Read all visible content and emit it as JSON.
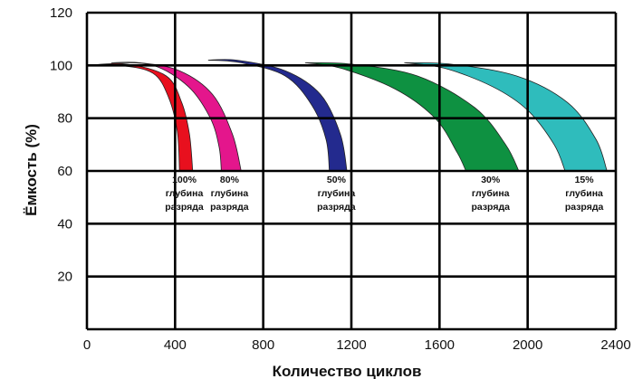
{
  "chart_data": {
    "type": "area",
    "xlabel": "Количество циклов",
    "ylabel": "Ёмкость (%)",
    "xlim": [
      0,
      2400
    ],
    "ylim": [
      0,
      120
    ],
    "x_ticks": [
      "0",
      "400",
      "800",
      "1200",
      "1600",
      "2000",
      "2400"
    ],
    "y_ticks": [
      "20",
      "40",
      "60",
      "80",
      "100",
      "120"
    ],
    "grid": true,
    "series": [
      {
        "label_lines": [
          "100%",
          "глубина",
          "разряда"
        ],
        "color": "#e8101e",
        "start": 0,
        "lower": [
          [
            0,
            100
          ],
          [
            150,
            100
          ],
          [
            300,
            97
          ],
          [
            370,
            88
          ],
          [
            410,
            75
          ],
          [
            420,
            60
          ]
        ],
        "upper": [
          [
            0,
            100
          ],
          [
            180,
            100.5
          ],
          [
            360,
            96
          ],
          [
            430,
            86
          ],
          [
            465,
            74
          ],
          [
            480,
            60
          ]
        ]
      },
      {
        "label_lines": [
          "80%",
          "глубина",
          "разряда"
        ],
        "color": "#e4168c",
        "start": 110,
        "lower": [
          [
            110,
            101
          ],
          [
            300,
            100
          ],
          [
            460,
            92
          ],
          [
            560,
            80
          ],
          [
            600,
            69
          ],
          [
            610,
            60
          ]
        ],
        "upper": [
          [
            110,
            101
          ],
          [
            240,
            101
          ],
          [
            420,
            98
          ],
          [
            570,
            89
          ],
          [
            660,
            74
          ],
          [
            700,
            60
          ]
        ]
      },
      {
        "label_lines": [
          "50%",
          "глубина",
          "разряда"
        ],
        "color": "#232a8e",
        "start": 550,
        "lower": [
          [
            550,
            102
          ],
          [
            700,
            101
          ],
          [
            900,
            96
          ],
          [
            1020,
            85
          ],
          [
            1085,
            72
          ],
          [
            1100,
            60
          ]
        ],
        "upper": [
          [
            550,
            102
          ],
          [
            680,
            102
          ],
          [
            900,
            98
          ],
          [
            1060,
            89
          ],
          [
            1150,
            74
          ],
          [
            1180,
            60
          ]
        ]
      },
      {
        "label_lines": [
          "30%",
          "глубина",
          "разряда"
        ],
        "color": "#0e9141",
        "start": 990,
        "lower": [
          [
            990,
            101
          ],
          [
            1150,
            99
          ],
          [
            1400,
            91
          ],
          [
            1580,
            80
          ],
          [
            1680,
            67
          ],
          [
            1720,
            60
          ]
        ],
        "upper": [
          [
            990,
            101
          ],
          [
            1200,
            100.5
          ],
          [
            1500,
            96
          ],
          [
            1760,
            84
          ],
          [
            1900,
            70
          ],
          [
            1960,
            60
          ]
        ]
      },
      {
        "label_lines": [
          "15%",
          "глубина",
          "разряда"
        ],
        "color": "#2fbcbc",
        "start": 1440,
        "lower": [
          [
            1440,
            101
          ],
          [
            1620,
            99
          ],
          [
            1840,
            92
          ],
          [
            2000,
            83
          ],
          [
            2120,
            70
          ],
          [
            2170,
            60
          ]
        ],
        "upper": [
          [
            1440,
            101
          ],
          [
            1650,
            100.5
          ],
          [
            1950,
            96
          ],
          [
            2180,
            86
          ],
          [
            2310,
            72
          ],
          [
            2360,
            60
          ]
        ]
      }
    ]
  }
}
